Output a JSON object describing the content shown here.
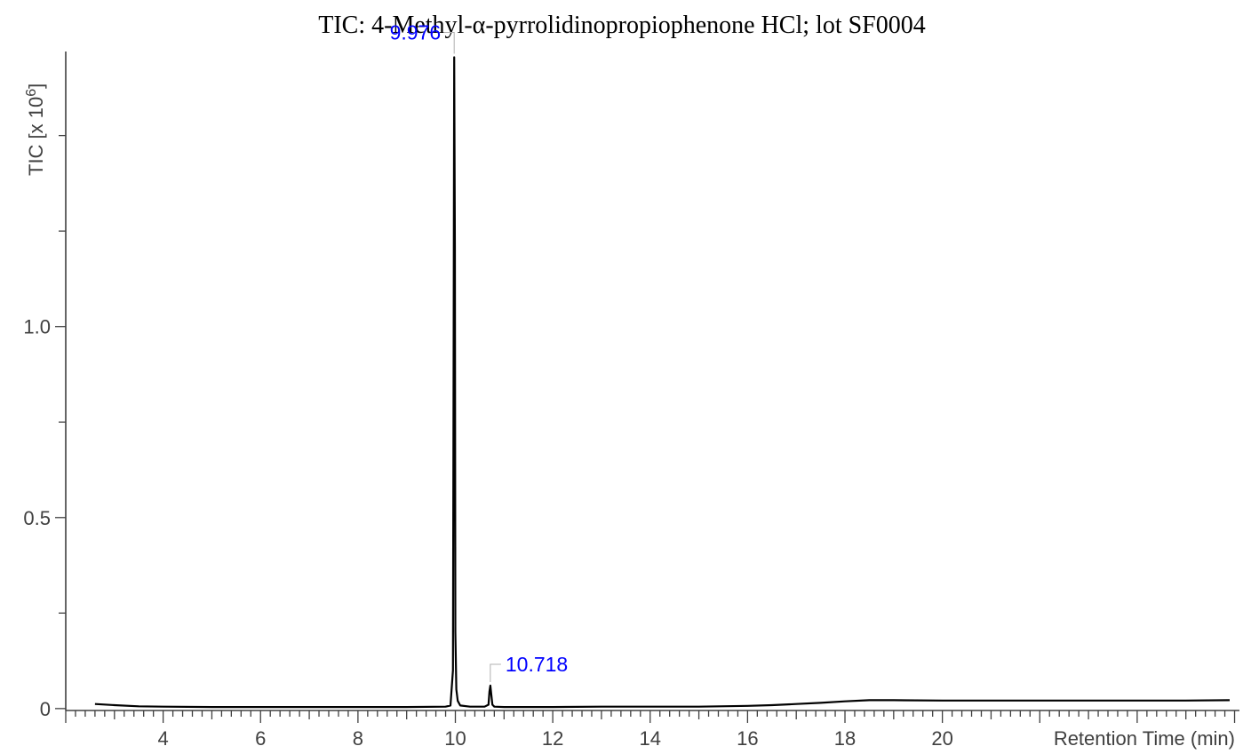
{
  "chart_data": {
    "type": "line",
    "title": "TIC:  4-Methyl-α-pyrrolidinopropiophenone HCl; lot SF0004",
    "xlabel": "Retention Time (min)",
    "ylabel": "TIC [x 10",
    "ylabel_exponent": "6",
    "xlim": [
      2.0,
      26.1
    ],
    "ylim": [
      -0.005,
      1.72
    ],
    "x_ticks_major": [
      4,
      6,
      8,
      10,
      12,
      14,
      16,
      18,
      20
    ],
    "x_tick_labels": [
      "4",
      "6",
      "8",
      "10",
      "12",
      "14",
      "16",
      "18",
      "20"
    ],
    "y_ticks_labeled": [
      0,
      0.5,
      1.0
    ],
    "y_tick_labels": [
      "0",
      "0.5",
      "1.0"
    ],
    "y_minor_step": 0.25,
    "grid": false,
    "colors": {
      "trace": "#000000",
      "peak_label": "#0000ff",
      "axis": "#404040"
    },
    "series": [
      {
        "x": [
          2.6,
          3.0,
          3.5,
          4.0,
          5.0,
          6.0,
          7.0,
          8.0,
          9.0,
          9.8,
          9.9,
          9.95,
          9.965,
          9.976,
          9.99,
          10.0,
          10.02,
          10.05,
          10.1,
          10.3,
          10.6,
          10.68,
          10.7,
          10.718,
          10.735,
          10.76,
          10.8,
          11.0,
          12.0,
          13.0,
          14.0,
          15.0,
          16.0,
          16.5,
          17.0,
          17.5,
          18.0,
          18.5,
          19.0,
          20.0,
          21.0,
          22.0,
          23.0,
          24.0,
          25.0,
          25.9
        ],
        "y": [
          0.012,
          0.009,
          0.006,
          0.005,
          0.004,
          0.004,
          0.004,
          0.004,
          0.004,
          0.005,
          0.008,
          0.1,
          1.0,
          1.705,
          1.2,
          0.2,
          0.05,
          0.02,
          0.008,
          0.005,
          0.005,
          0.01,
          0.045,
          0.06,
          0.04,
          0.01,
          0.005,
          0.004,
          0.004,
          0.005,
          0.005,
          0.005,
          0.007,
          0.009,
          0.012,
          0.015,
          0.019,
          0.022,
          0.022,
          0.021,
          0.021,
          0.021,
          0.021,
          0.021,
          0.021,
          0.022
        ]
      }
    ],
    "peak_labels": [
      {
        "x": 9.976,
        "y": 1.705,
        "label": "9.976"
      },
      {
        "x": 10.718,
        "y": 0.06,
        "label": "10.718"
      }
    ]
  }
}
